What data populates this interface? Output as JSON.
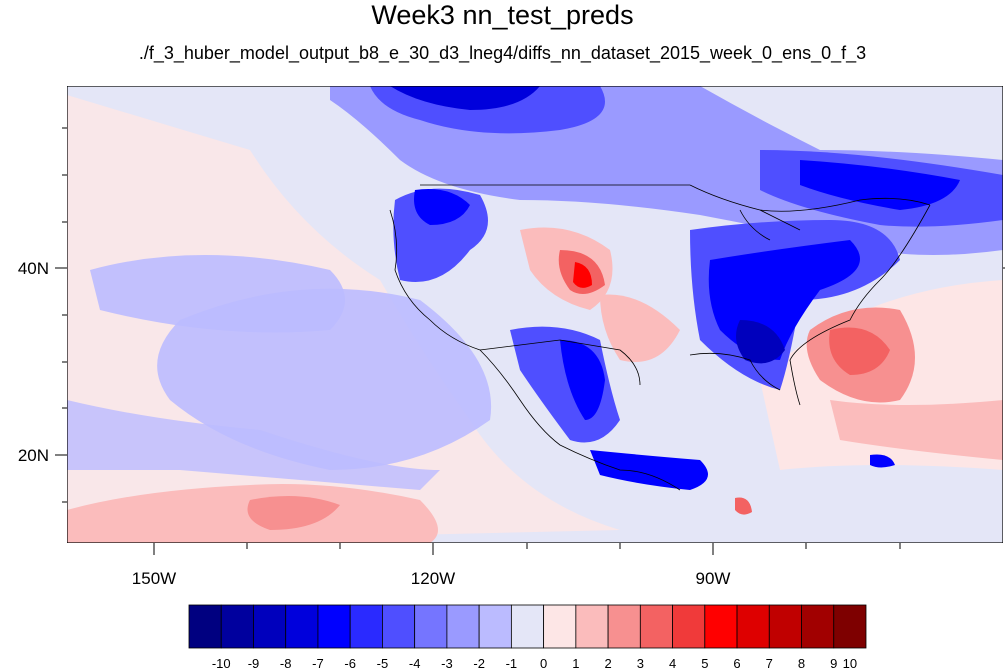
{
  "title": "Week3 nn_test_preds",
  "subtitle": "./f_3_huber_model_output_b8_e_30_d3_lneg4/diffs_nn_dataset_2015_week_0_ens_0_f_3",
  "lat_labels": [
    "40N",
    "20N"
  ],
  "lon_labels": [
    "150W",
    "120W",
    "90W"
  ],
  "colorbar": {
    "labels": [
      "-10",
      "-9",
      "-8",
      "-7",
      "-6",
      "-5",
      "-4",
      "-3",
      "-2",
      "-1",
      "0",
      "1",
      "2",
      "3",
      "4",
      "5",
      "6",
      "7",
      "8",
      "9",
      "10"
    ],
    "colors": [
      "#000080",
      "#00009e",
      "#0000bd",
      "#0000dc",
      "#0000ff",
      "#2a2aff",
      "#4f4fff",
      "#7575ff",
      "#9a9aff",
      "#bbbbff",
      "#e4e6f7",
      "#fde6e6",
      "#fbbcbc",
      "#f79090",
      "#f36262",
      "#f03a3a",
      "#ff0000",
      "#de0000",
      "#c00000",
      "#a10000",
      "#7e0000"
    ]
  }
}
